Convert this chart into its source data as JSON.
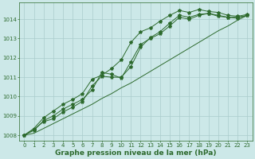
{
  "x": [
    0,
    1,
    2,
    3,
    4,
    5,
    6,
    7,
    8,
    9,
    10,
    11,
    12,
    13,
    14,
    15,
    16,
    17,
    18,
    19,
    20,
    21,
    22,
    23
  ],
  "line1": [
    1008.0,
    1008.3,
    1008.7,
    1008.85,
    1009.2,
    1009.45,
    1009.75,
    1010.55,
    1011.05,
    1011.0,
    1011.0,
    1011.55,
    1012.55,
    1013.05,
    1013.35,
    1013.8,
    1014.2,
    1014.1,
    1014.25,
    1014.3,
    1014.2,
    1014.1,
    1014.1,
    1014.2
  ],
  "line2": [
    1008.0,
    1008.25,
    1008.75,
    1009.0,
    1009.35,
    1009.6,
    1009.85,
    1010.35,
    1011.25,
    1011.15,
    1010.95,
    1011.8,
    1012.7,
    1013.0,
    1013.25,
    1013.65,
    1014.1,
    1014.0,
    1014.2,
    1014.3,
    1014.15,
    1014.1,
    1014.05,
    1014.2
  ],
  "line3": [
    1008.0,
    1008.35,
    1008.9,
    1009.25,
    1009.6,
    1009.85,
    1010.15,
    1010.9,
    1011.1,
    1011.45,
    1011.9,
    1012.8,
    1013.35,
    1013.55,
    1013.9,
    1014.2,
    1014.45,
    1014.35,
    1014.5,
    1014.4,
    1014.35,
    1014.2,
    1014.15,
    1014.25
  ],
  "line4": [
    1008.0,
    1008.1,
    1008.35,
    1008.6,
    1008.85,
    1009.1,
    1009.35,
    1009.6,
    1009.9,
    1010.15,
    1010.45,
    1010.7,
    1011.0,
    1011.3,
    1011.6,
    1011.9,
    1012.2,
    1012.5,
    1012.8,
    1013.1,
    1013.4,
    1013.65,
    1013.95,
    1014.2
  ],
  "ylim": [
    1007.7,
    1014.85
  ],
  "xlim": [
    -0.5,
    23.5
  ],
  "yticks": [
    1008,
    1009,
    1010,
    1011,
    1012,
    1013,
    1014
  ],
  "xticks": [
    0,
    1,
    2,
    3,
    4,
    5,
    6,
    7,
    8,
    9,
    10,
    11,
    12,
    13,
    14,
    15,
    16,
    17,
    18,
    19,
    20,
    21,
    22,
    23
  ],
  "line_color": "#2d6a2d",
  "bg_color": "#cce8e8",
  "grid_color": "#aacccc",
  "xlabel": "Graphe pression niveau de la mer (hPa)",
  "tick_fontsize": 5.0,
  "xlabel_fontsize": 6.5
}
